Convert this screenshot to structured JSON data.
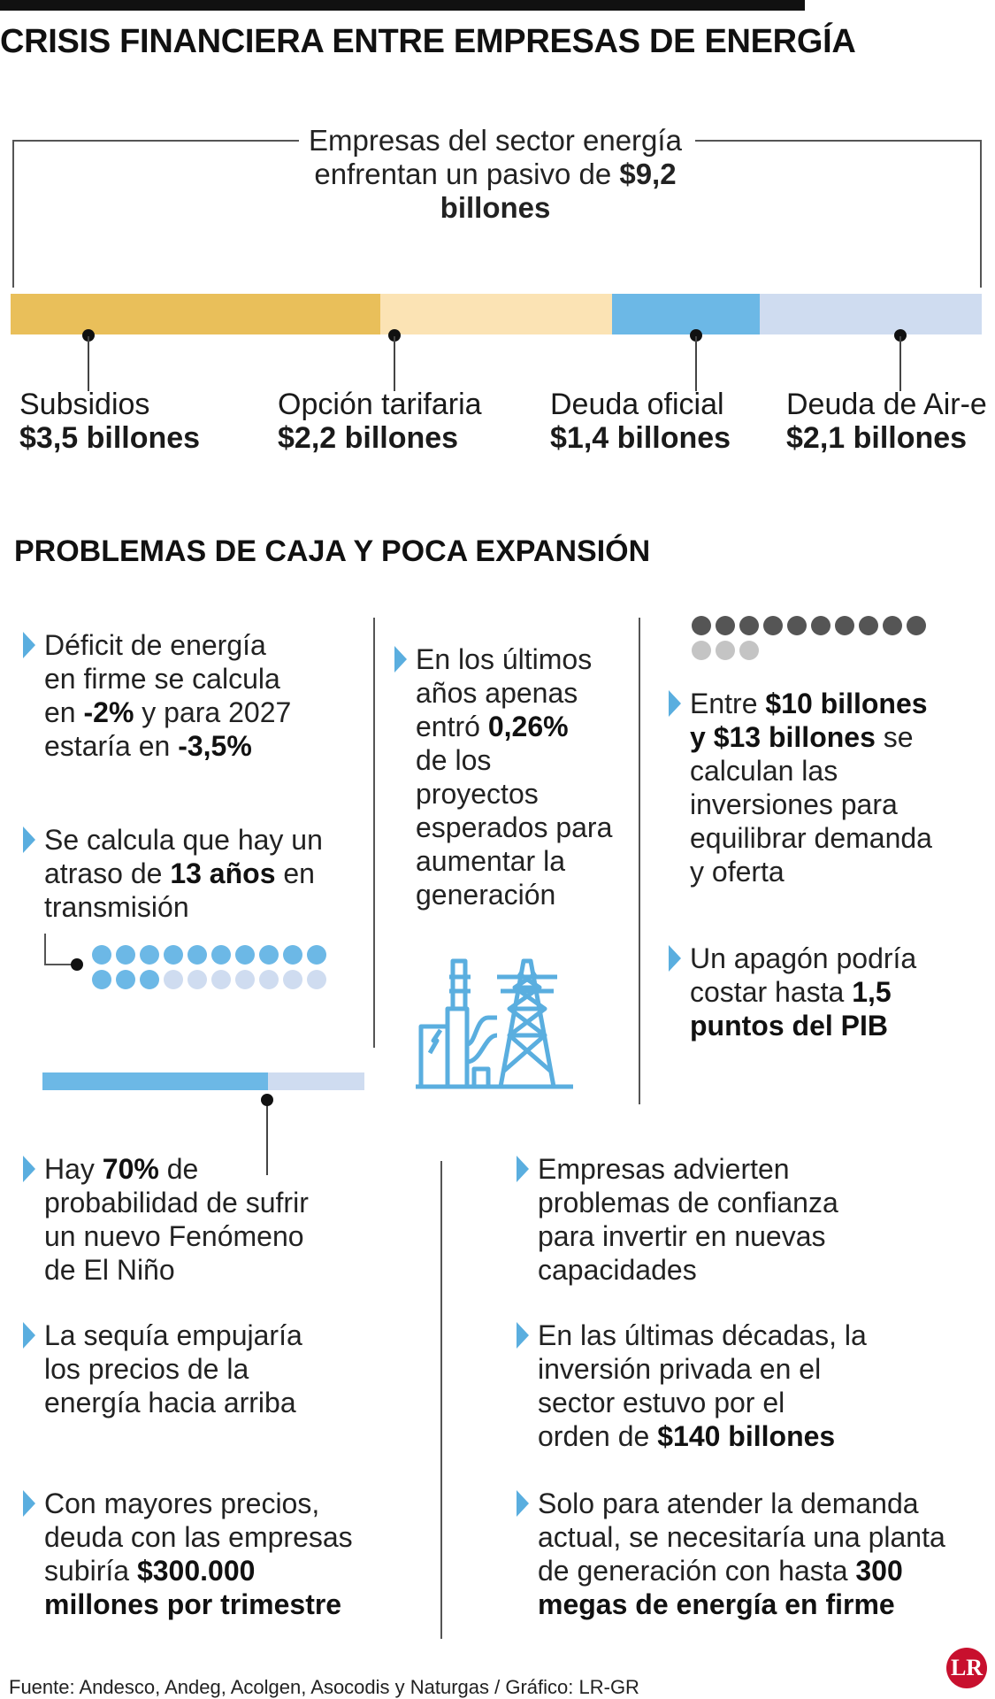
{
  "title": "CRISIS FINANCIERA ENTRE EMPRESAS DE ENERGÍA",
  "intro": {
    "text": "Empresas del sector energía enfrentan un pasivo de ",
    "bold": "$9,2 billones"
  },
  "colors": {
    "subsidios": "#e9bf5a",
    "opcion": "#fbe3b4",
    "deuda_oficial": "#6cb8e6",
    "deuda_aire": "#cfdcf0",
    "accent": "#5aaedf",
    "dark_dot": "#555555",
    "light_dot": "#c4c4c4",
    "blue_dot": "#6cb8e6",
    "pale_dot": "#cfdcf0"
  },
  "chart_data": {
    "type": "bar",
    "categories": [
      "Subsidios",
      "Opción tarifaria",
      "Deuda oficial",
      "Deuda de Air-e"
    ],
    "values": [
      3.5,
      2.2,
      1.4,
      2.1
    ],
    "value_labels": [
      "$3,5 billones",
      "$2,2 billones",
      "$1,4 billones",
      "$2,1 billones"
    ],
    "stacked": true
  },
  "section2_title": "PROBLEMAS DE CAJA Y POCA EXPANSIÓN",
  "col1": [
    {
      "parts": [
        "Déficit de energía\nen firme se calcula\nen ",
        "-2%",
        " y para 2027\nestaría en ",
        "-3,5%",
        ""
      ]
    },
    {
      "parts": [
        "Se calcula que hay un\natraso de ",
        "13 años",
        " en\ntransmisión"
      ]
    }
  ],
  "col2": [
    {
      "parts": [
        "En los últimos\naños apenas\nentró ",
        "0,26%",
        "\nde los\nproyectos\nesperados para\naumentar la\ngeneración"
      ]
    }
  ],
  "col3": [
    {
      "parts": [
        "Entre ",
        "$10 billones\ny $13 billones",
        " se\ncalculan las\ninversiones para\nequilibrar demanda\ny oferta"
      ]
    },
    {
      "parts": [
        "Un apagón podría\ncostar hasta ",
        "1,5\npuntos del PIB",
        ""
      ]
    }
  ],
  "dots_gray": {
    "filled": 10,
    "total": 13
  },
  "dots_blue": {
    "filled": 13,
    "total": 20
  },
  "bar_small": {
    "value": 0.7
  },
  "col4": [
    {
      "parts": [
        "Hay ",
        "70%",
        " de\nprobabilidad de sufrir\nun nuevo Fenómeno\nde El Niño"
      ]
    },
    {
      "parts": [
        "La sequía empujaría\nlos precios de la\nenergía hacia arriba"
      ]
    },
    {
      "parts": [
        "Con mayores precios,\ndeuda con las empresas\nsubiría ",
        "$300.000\nmillones por trimestre",
        ""
      ]
    }
  ],
  "col5": [
    {
      "parts": [
        "Empresas advierten\nproblemas de confianza\npara invertir en nuevas\ncapacidades"
      ]
    },
    {
      "parts": [
        "En las últimas décadas, la\ninversión privada en el\nsector estuvo por el\norden de ",
        "$140 billones",
        ""
      ]
    },
    {
      "parts": [
        "Solo para atender la demanda\nactual, se necesitaría una planta\nde generación con hasta ",
        "300\nmegas de energía en firme",
        ""
      ]
    }
  ],
  "source": "Fuente: Andesco, Andeg, Acolgen, Asocodis y Naturgas / Gráfico: LR-GR",
  "logo": "LR",
  "icons": {
    "plant": "power-plant-icon",
    "bullet": "triangle-bullet-icon"
  }
}
